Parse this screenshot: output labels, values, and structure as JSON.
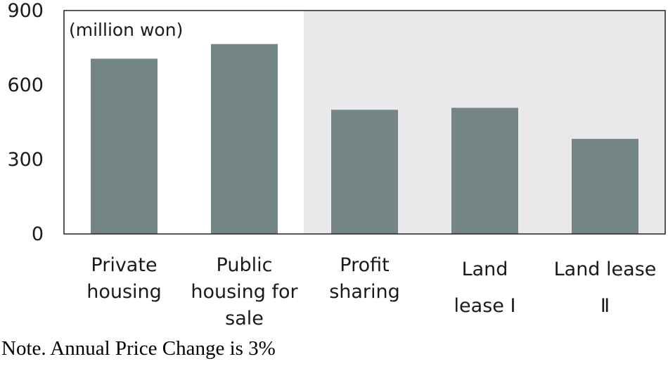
{
  "chart_data": {
    "type": "bar",
    "categories": [
      [
        "Private",
        "housing"
      ],
      [
        "Public",
        "housing for",
        "sale"
      ],
      [
        "Profit",
        "sharing"
      ],
      [
        "Land",
        "lease Ⅰ"
      ],
      [
        "Land lease",
        "Ⅱ"
      ]
    ],
    "values": [
      706,
      765,
      500,
      508,
      383
    ],
    "ylim": [
      0,
      900
    ],
    "yticks": [
      0,
      300,
      600,
      900
    ],
    "unit_label": "(million won)",
    "shaded_categories_from_index": 2,
    "grid": false,
    "colors": {
      "bar": "#738585",
      "shade": "#e9e9eb",
      "axis": "#222222"
    }
  },
  "note": "Note. Annual Price Change is 3%"
}
